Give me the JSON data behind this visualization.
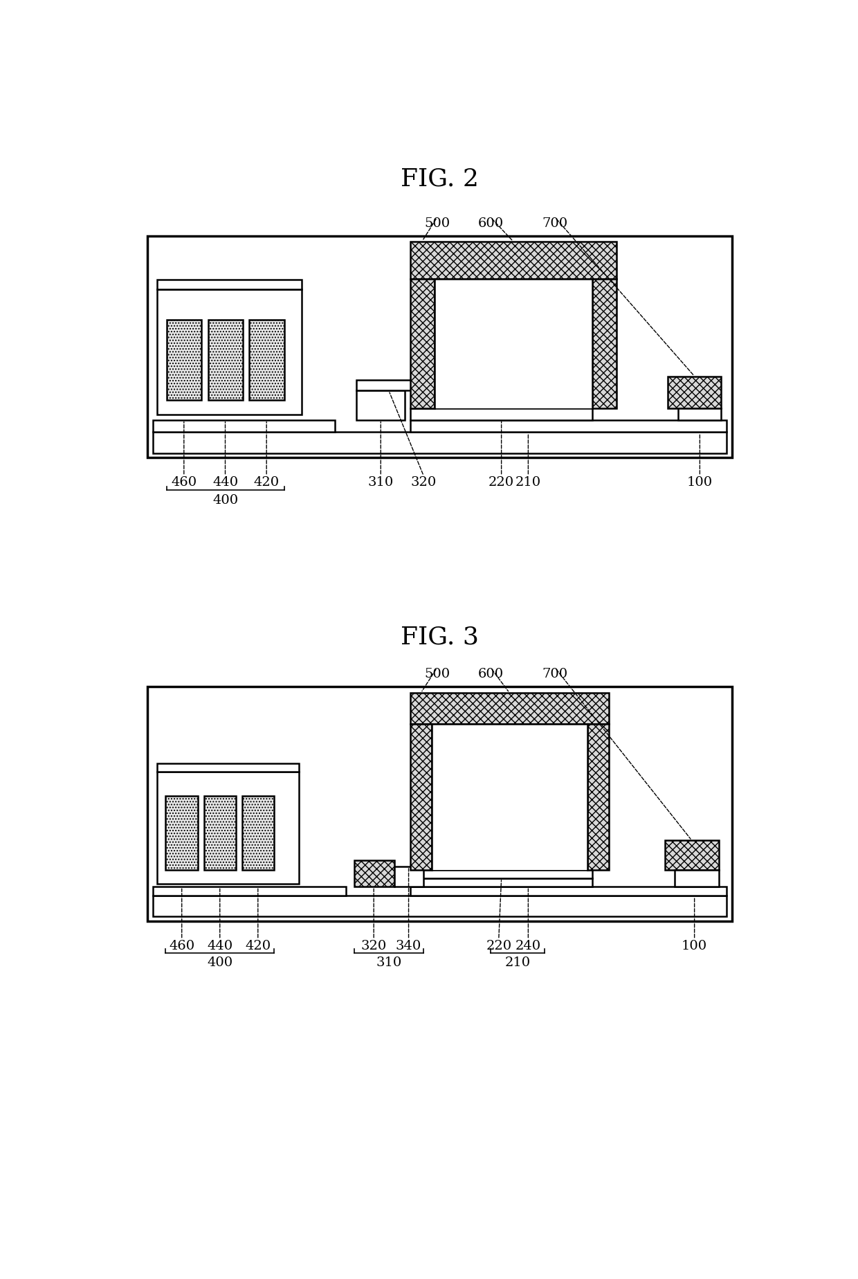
{
  "fig2_title": "FIG. 2",
  "fig3_title": "FIG. 3",
  "bg_color": "#ffffff"
}
